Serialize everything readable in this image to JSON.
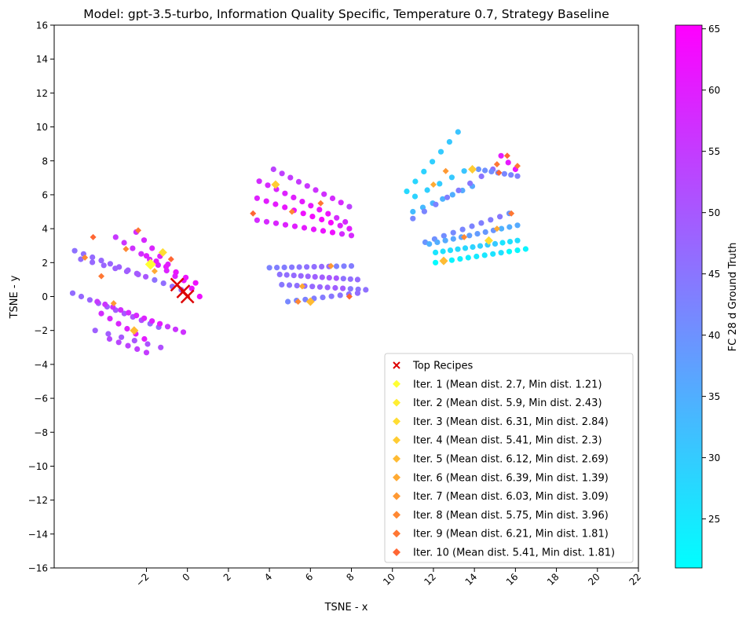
{
  "chart_data": {
    "type": "scatter",
    "title": "Model: gpt-3.5-turbo, Information Quality Specific, Temperature 0.7, Strategy Baseline",
    "xlabel": "TSNE - x",
    "ylabel": "TSNE - y",
    "xlim": [
      -6.5,
      22
    ],
    "ylim": [
      -16,
      16
    ],
    "xticks": [
      -2,
      0,
      2,
      4,
      6,
      8,
      10,
      12,
      14,
      16,
      18,
      20,
      22
    ],
    "xtick_labels": [
      "−2",
      "0",
      "2",
      "4",
      "6",
      "8",
      "10",
      "12",
      "14",
      "16",
      "18",
      "20",
      "22"
    ],
    "yticks": [
      -16,
      -14,
      -12,
      -10,
      -8,
      -6,
      -4,
      -2,
      0,
      2,
      4,
      6,
      8,
      10,
      12,
      14,
      16
    ],
    "ytick_labels": [
      "−16",
      "−14",
      "−12",
      "−10",
      "−8",
      "−6",
      "−4",
      "−2",
      "0",
      "2",
      "4",
      "6",
      "8",
      "10",
      "12",
      "14",
      "16"
    ],
    "grid": false,
    "colorbar": {
      "label": "FC 28 d Ground Truth",
      "range": [
        21,
        65.3
      ],
      "ticks": [
        25,
        30,
        35,
        40,
        45,
        50,
        55,
        60,
        65
      ],
      "tick_labels": [
        "25",
        "30",
        "35",
        "40",
        "45",
        "50",
        "55",
        "60",
        "65"
      ],
      "colormap": "cool",
      "colors": [
        "#00ffff",
        "#ff00ff"
      ]
    },
    "colors": {
      "top_recipes": "#dd0000",
      "iterations": [
        "#ffff33",
        "#ffee33",
        "#ffdd33",
        "#ffcc33",
        "#ffbb33",
        "#ffaa33",
        "#ff9933",
        "#ff8833",
        "#ff7733",
        "#ff6633"
      ]
    },
    "legend": {
      "position": "lower-right",
      "entries": [
        "Top Recipes",
        "Iter. 1 (Mean dist. 2.7, Min dist. 1.21)",
        "Iter. 2 (Mean dist. 5.9, Min dist. 2.43)",
        "Iter. 3 (Mean dist. 6.31, Min dist. 2.84)",
        "Iter. 4 (Mean dist. 5.41, Min dist. 2.3)",
        "Iter. 5 (Mean dist. 6.12, Min dist. 2.69)",
        "Iter. 6 (Mean dist. 6.39, Min dist. 1.39)",
        "Iter. 7 (Mean dist. 6.03, Min dist. 3.09)",
        "Iter. 8 (Mean dist. 5.75, Min dist. 3.96)",
        "Iter. 9 (Mean dist. 6.21, Min dist. 1.81)",
        "Iter. 10 (Mean dist. 5.41, Min dist. 1.81)"
      ]
    },
    "point_rows": [
      {
        "start": [
          -5.5,
          2.7
        ],
        "end": [
          -0.3,
          0.4
        ],
        "n": 13,
        "value": 48
      },
      {
        "start": [
          -5.2,
          2.2
        ],
        "end": [
          -2.4,
          1.3
        ],
        "n": 6,
        "value": 49
      },
      {
        "start": [
          -3.5,
          3.5
        ],
        "end": [
          -0.6,
          1.2
        ],
        "n": 8,
        "value": 58
      },
      {
        "start": [
          -2.5,
          3.8
        ],
        "end": [
          0.6,
          0.0
        ],
        "n": 9,
        "value": 60
      },
      {
        "start": [
          -2.0,
          2.4
        ],
        "end": [
          0.4,
          0.8
        ],
        "n": 6,
        "value": 62
      },
      {
        "start": [
          -5.6,
          0.2
        ],
        "end": [
          -1.4,
          -1.8
        ],
        "n": 11,
        "value": 49
      },
      {
        "start": [
          -4.4,
          -0.3
        ],
        "end": [
          -0.2,
          -2.1
        ],
        "n": 12,
        "value": 58
      },
      {
        "start": [
          -4.2,
          -1.0
        ],
        "end": [
          -2.1,
          -2.5
        ],
        "n": 6,
        "value": 60
      },
      {
        "start": [
          -4.5,
          -2.0
        ],
        "end": [
          -1.3,
          -3.0
        ],
        "n": 6,
        "value": 51
      },
      {
        "start": [
          -3.8,
          -2.5
        ],
        "end": [
          -2.0,
          -3.3
        ],
        "n": 5,
        "value": 55
      },
      {
        "start": [
          4.2,
          7.5
        ],
        "end": [
          7.9,
          5.3
        ],
        "n": 10,
        "value": 56
      },
      {
        "start": [
          3.5,
          6.8
        ],
        "end": [
          7.7,
          4.4
        ],
        "n": 11,
        "value": 60
      },
      {
        "start": [
          3.4,
          5.8
        ],
        "end": [
          7.9,
          4.0
        ],
        "n": 11,
        "value": 62
      },
      {
        "start": [
          3.4,
          4.5
        ],
        "end": [
          8.0,
          3.6
        ],
        "n": 11,
        "value": 60
      },
      {
        "start": [
          4.0,
          1.7
        ],
        "end": [
          8.0,
          1.8
        ],
        "n": 12,
        "value": 45
      },
      {
        "start": [
          4.5,
          1.3
        ],
        "end": [
          8.3,
          1.0
        ],
        "n": 12,
        "value": 48
      },
      {
        "start": [
          4.6,
          0.7
        ],
        "end": [
          8.7,
          0.4
        ],
        "n": 12,
        "value": 47
      },
      {
        "start": [
          4.9,
          -0.3
        ],
        "end": [
          8.3,
          0.2
        ],
        "n": 9,
        "value": 44
      },
      {
        "start": [
          10.7,
          6.2
        ],
        "end": [
          13.2,
          9.7
        ],
        "n": 7,
        "value": 30
      },
      {
        "start": [
          11.1,
          5.9
        ],
        "end": [
          13.5,
          7.4
        ],
        "n": 5,
        "value": 31
      },
      {
        "start": [
          11.0,
          5.0
        ],
        "end": [
          13.9,
          6.5
        ],
        "n": 7,
        "value": 35
      },
      {
        "start": [
          11.0,
          4.6
        ],
        "end": [
          14.9,
          7.5
        ],
        "n": 8,
        "value": 44
      },
      {
        "start": [
          14.2,
          7.5
        ],
        "end": [
          16.1,
          7.1
        ],
        "n": 7,
        "value": 42
      },
      {
        "start": [
          15.3,
          8.3
        ],
        "end": [
          16.0,
          7.5
        ],
        "n": 3,
        "value": 63
      },
      {
        "start": [
          11.6,
          3.2
        ],
        "end": [
          15.7,
          4.9
        ],
        "n": 10,
        "value": 42
      },
      {
        "start": [
          11.8,
          3.1
        ],
        "end": [
          16.1,
          4.2
        ],
        "n": 12,
        "value": 37
      },
      {
        "start": [
          12.1,
          2.6
        ],
        "end": [
          16.1,
          3.3
        ],
        "n": 12,
        "value": 28
      },
      {
        "start": [
          12.1,
          2.0
        ],
        "end": [
          16.5,
          2.8
        ],
        "n": 12,
        "value": 24
      }
    ],
    "iteration_points": [
      {
        "iter": 10,
        "x": -4.6,
        "y": 3.5
      },
      {
        "iter": 9,
        "x": -2.4,
        "y": 3.9
      },
      {
        "iter": 8,
        "x": -3.0,
        "y": 2.8
      },
      {
        "iter": 6,
        "x": -1.6,
        "y": 1.5
      },
      {
        "iter": 10,
        "x": -0.8,
        "y": 2.2
      },
      {
        "iter": 1,
        "x": -1.8,
        "y": 1.9
      },
      {
        "iter": 3,
        "x": -1.2,
        "y": 2.6
      },
      {
        "iter": 5,
        "x": -2.6,
        "y": -2.0
      },
      {
        "iter": 7,
        "x": -3.6,
        "y": -0.4
      },
      {
        "iter": 8,
        "x": -5.0,
        "y": 2.3
      },
      {
        "iter": 9,
        "x": -4.2,
        "y": 1.2
      },
      {
        "iter": 10,
        "x": 3.2,
        "y": 4.9
      },
      {
        "iter": 4,
        "x": 4.3,
        "y": 6.6
      },
      {
        "iter": 8,
        "x": 5.1,
        "y": 5.0
      },
      {
        "iter": 9,
        "x": 6.5,
        "y": 5.5
      },
      {
        "iter": 7,
        "x": 7.0,
        "y": 1.8
      },
      {
        "iter": 6,
        "x": 5.6,
        "y": 0.6
      },
      {
        "iter": 10,
        "x": 7.9,
        "y": 0.0
      },
      {
        "iter": 5,
        "x": 6.0,
        "y": -0.3
      },
      {
        "iter": 8,
        "x": 5.4,
        "y": -0.3
      },
      {
        "iter": 6,
        "x": 12.0,
        "y": 6.6
      },
      {
        "iter": 7,
        "x": 12.6,
        "y": 7.4
      },
      {
        "iter": 4,
        "x": 13.9,
        "y": 7.5
      },
      {
        "iter": 9,
        "x": 15.1,
        "y": 7.8
      },
      {
        "iter": 10,
        "x": 15.6,
        "y": 8.3
      },
      {
        "iter": 9,
        "x": 16.1,
        "y": 7.7
      },
      {
        "iter": 10,
        "x": 15.2,
        "y": 7.3
      },
      {
        "iter": 5,
        "x": 12.5,
        "y": 2.1
      },
      {
        "iter": 8,
        "x": 13.5,
        "y": 3.5
      },
      {
        "iter": 6,
        "x": 15.1,
        "y": 4.0
      },
      {
        "iter": 3,
        "x": 14.7,
        "y": 3.3
      },
      {
        "iter": 9,
        "x": 15.8,
        "y": 4.9
      }
    ],
    "top_recipes": [
      {
        "x": -0.5,
        "y": 0.7
      },
      {
        "x": -0.2,
        "y": 0.3
      },
      {
        "x": 0.0,
        "y": 0.0
      }
    ]
  }
}
